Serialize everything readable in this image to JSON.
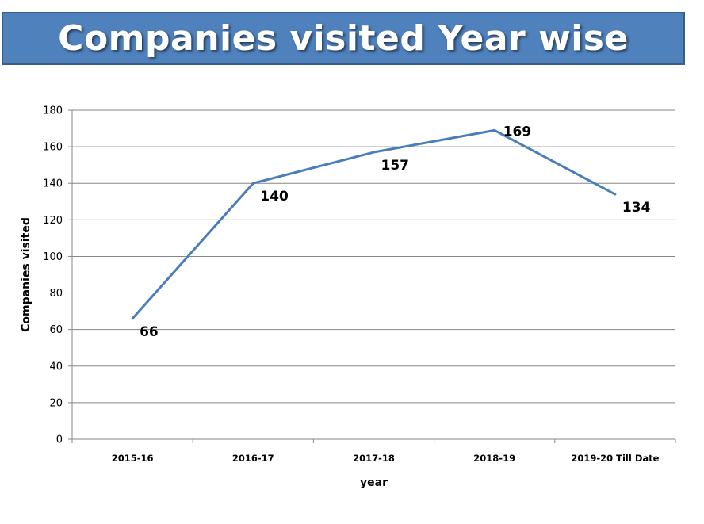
{
  "banner": {
    "title": "Companies visited Year wise"
  },
  "chart_data": {
    "type": "line",
    "title": "Companies visited Year wise",
    "xlabel": "year",
    "ylabel": "Companies visited",
    "categories": [
      "2015-16",
      "2016-17",
      "2017-18",
      "2018-19",
      "2019-20 Till Date"
    ],
    "series": [
      {
        "values": [
          66,
          140,
          157,
          169,
          134
        ]
      }
    ],
    "ylim": [
      0,
      180
    ],
    "yticks": [
      0,
      20,
      40,
      60,
      80,
      100,
      120,
      140,
      160,
      180
    ],
    "grid": true,
    "data_labels": true,
    "legend": "none",
    "colors": {
      "line": "#4a7ebb",
      "grid": "#868686",
      "banner": "#4f81bd"
    }
  }
}
